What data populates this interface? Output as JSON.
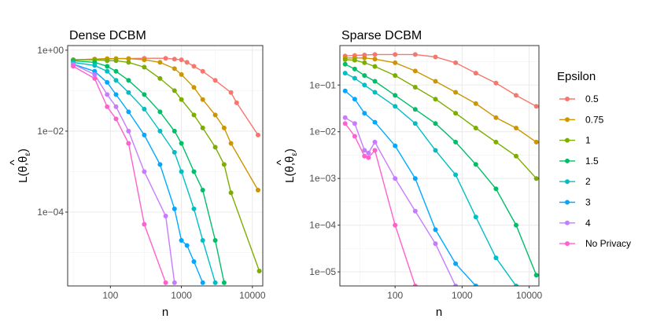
{
  "chart_data": [
    {
      "type": "line",
      "title": "Dense DCBM",
      "xlabel": "n",
      "ylabel": "L(θ, θ̂_ε)",
      "xscale": "log",
      "yscale": "log",
      "xlim": [
        25,
        14000
      ],
      "ylim": [
        1.5e-06,
        1.3
      ],
      "xticks": [
        {
          "v": 100,
          "label": "100"
        },
        {
          "v": 1000,
          "label": "1000"
        },
        {
          "v": 10000,
          "label": "10000"
        }
      ],
      "yticks": [
        {
          "v": 1,
          "label": "1e+00"
        },
        {
          "v": 0.01,
          "label": "1e−02"
        },
        {
          "v": 0.0001,
          "label": "1e−04"
        }
      ],
      "series": [
        {
          "name": "0.5",
          "x": [
            30,
            60,
            90,
            120,
            180,
            300,
            600,
            800,
            1000,
            1200,
            1500,
            2000,
            3000,
            5000,
            6000,
            12000
          ],
          "y": [
            0.58,
            0.6,
            0.6,
            0.62,
            0.62,
            0.63,
            0.63,
            0.6,
            0.58,
            0.5,
            0.4,
            0.3,
            0.18,
            0.09,
            0.05,
            0.008
          ]
        },
        {
          "name": "0.75",
          "x": [
            30,
            60,
            90,
            120,
            180,
            300,
            500,
            800,
            1000,
            1500,
            2000,
            3000,
            4000,
            5000,
            12000
          ],
          "y": [
            0.58,
            0.6,
            0.62,
            0.62,
            0.62,
            0.58,
            0.5,
            0.35,
            0.25,
            0.12,
            0.06,
            0.025,
            0.012,
            0.005,
            0.00035
          ]
        },
        {
          "name": "1",
          "x": [
            30,
            60,
            90,
            120,
            180,
            300,
            500,
            800,
            1000,
            1500,
            2000,
            3000,
            4000,
            5000,
            12500
          ],
          "y": [
            0.58,
            0.58,
            0.55,
            0.55,
            0.5,
            0.38,
            0.2,
            0.1,
            0.06,
            0.025,
            0.012,
            0.004,
            0.0015,
            0.0003,
            3.5e-06
          ]
        },
        {
          "name": "1.5",
          "x": [
            30,
            60,
            90,
            120,
            180,
            300,
            500,
            800,
            1000,
            1500,
            2000,
            3000,
            4000
          ],
          "y": [
            0.55,
            0.5,
            0.4,
            0.3,
            0.18,
            0.08,
            0.03,
            0.01,
            0.005,
            0.001,
            0.00035,
            2e-05,
            1.8e-06
          ]
        },
        {
          "name": "2",
          "x": [
            30,
            60,
            90,
            120,
            180,
            300,
            500,
            800,
            1000,
            1500,
            2000,
            3000
          ],
          "y": [
            0.5,
            0.42,
            0.3,
            0.18,
            0.09,
            0.035,
            0.01,
            0.003,
            0.001,
            0.00012,
            2e-05,
            1.8e-06
          ]
        },
        {
          "name": "3",
          "x": [
            30,
            60,
            90,
            120,
            180,
            300,
            500,
            800,
            1000,
            1200,
            1500,
            2000
          ],
          "y": [
            0.45,
            0.3,
            0.16,
            0.08,
            0.03,
            0.008,
            0.0015,
            0.00012,
            2e-05,
            1.5e-05,
            6e-06,
            1.8e-06
          ]
        },
        {
          "name": "4",
          "x": [
            30,
            60,
            90,
            120,
            180,
            300,
            600,
            800
          ],
          "y": [
            0.45,
            0.25,
            0.08,
            0.04,
            0.01,
            0.001,
            8e-05,
            1.8e-06
          ]
        },
        {
          "name": "No Privacy",
          "x": [
            30,
            60,
            90,
            120,
            180,
            300,
            600
          ],
          "y": [
            0.4,
            0.2,
            0.04,
            0.02,
            0.005,
            5e-05,
            1.8e-06
          ]
        }
      ]
    },
    {
      "type": "line",
      "title": "Sparse DCBM",
      "xlabel": "n",
      "ylabel": "L(θ, θ̂_ε)",
      "xscale": "log",
      "yscale": "log",
      "xlim": [
        15,
        14000
      ],
      "ylim": [
        5e-06,
        0.7
      ],
      "xticks": [
        {
          "v": 100,
          "label": "100"
        },
        {
          "v": 1000,
          "label": "1000"
        },
        {
          "v": 10000,
          "label": "10000"
        }
      ],
      "yticks": [
        {
          "v": 0.1,
          "label": "1e−01"
        },
        {
          "v": 0.01,
          "label": "1e−02"
        },
        {
          "v": 0.001,
          "label": "1e−03"
        },
        {
          "v": 0.0001,
          "label": "1e−04"
        },
        {
          "v": 1e-05,
          "label": "1e−05"
        }
      ],
      "series": [
        {
          "name": "0.5",
          "x": [
            18,
            25,
            35,
            50,
            100,
            200,
            400,
            800,
            1600,
            3200,
            6400,
            12800
          ],
          "y": [
            0.42,
            0.43,
            0.44,
            0.45,
            0.45,
            0.45,
            0.4,
            0.3,
            0.18,
            0.11,
            0.06,
            0.035
          ]
        },
        {
          "name": "0.75",
          "x": [
            18,
            25,
            35,
            50,
            100,
            200,
            400,
            800,
            1600,
            3200,
            6400,
            12800
          ],
          "y": [
            0.38,
            0.38,
            0.38,
            0.36,
            0.3,
            0.2,
            0.12,
            0.07,
            0.04,
            0.02,
            0.012,
            0.006
          ]
        },
        {
          "name": "1",
          "x": [
            18,
            25,
            35,
            50,
            100,
            200,
            400,
            800,
            1600,
            3200,
            6400,
            12800
          ],
          "y": [
            0.35,
            0.34,
            0.3,
            0.25,
            0.16,
            0.09,
            0.05,
            0.025,
            0.012,
            0.006,
            0.003,
            0.001
          ]
        },
        {
          "name": "1.5",
          "x": [
            18,
            25,
            35,
            50,
            100,
            200,
            400,
            800,
            1600,
            3200,
            6400,
            12800
          ],
          "y": [
            0.28,
            0.22,
            0.16,
            0.12,
            0.06,
            0.03,
            0.015,
            0.006,
            0.002,
            0.0006,
            0.0001,
            8.5e-06
          ]
        },
        {
          "name": "2",
          "x": [
            18,
            25,
            35,
            50,
            100,
            200,
            400,
            800,
            1600,
            3200,
            6400
          ],
          "y": [
            0.18,
            0.14,
            0.1,
            0.07,
            0.035,
            0.015,
            0.004,
            0.0012,
            0.00015,
            2e-05,
            5e-06
          ]
        },
        {
          "name": "3",
          "x": [
            18,
            25,
            35,
            50,
            100,
            200,
            400,
            800,
            1600
          ],
          "y": [
            0.075,
            0.05,
            0.025,
            0.016,
            0.005,
            0.001,
            8e-05,
            1.5e-05,
            5e-06
          ]
        },
        {
          "name": "4",
          "x": [
            18,
            25,
            35,
            40,
            50,
            100,
            200,
            400,
            800
          ],
          "y": [
            0.02,
            0.015,
            0.004,
            0.0035,
            0.006,
            0.001,
            0.0002,
            4e-05,
            5e-06
          ]
        },
        {
          "name": "No Privacy",
          "x": [
            18,
            25,
            35,
            40,
            50,
            100,
            200
          ],
          "y": [
            0.015,
            0.008,
            0.003,
            0.0028,
            0.004,
            0.0001,
            5e-06
          ]
        }
      ]
    }
  ],
  "legend": {
    "title": "Epsilon",
    "entries": [
      "0.5",
      "0.75",
      "1",
      "1.5",
      "2",
      "3",
      "4",
      "No Privacy"
    ],
    "colors": [
      "#F8766D",
      "#CD9600",
      "#7CAE00",
      "#00BE67",
      "#00BFC4",
      "#00A9FF",
      "#C77CFF",
      "#FF61CC"
    ]
  }
}
